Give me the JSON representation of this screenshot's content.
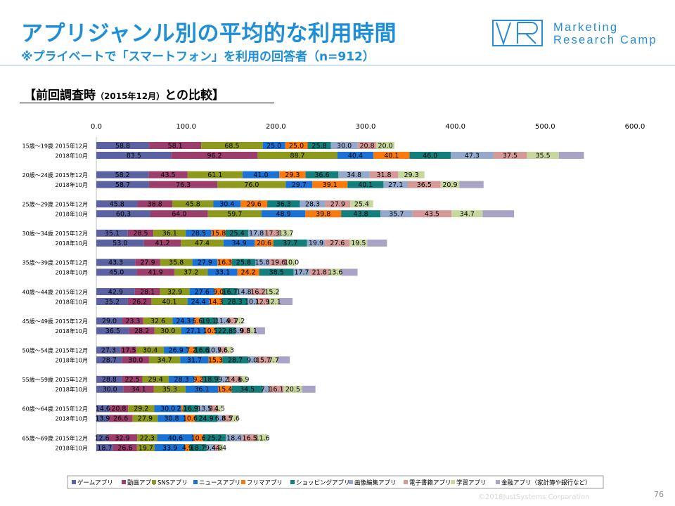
{
  "header": {
    "title": "アプリジャンル別の平均的な利用時間",
    "subtitle": "※プライベートで「スマートフォン」を利用の回答者（n=912）"
  },
  "logo": {
    "line1": "Marketing",
    "line2": "Research Camp",
    "color": "#2a8bd6"
  },
  "section": {
    "label_main": "【前回調査時",
    "label_small": "（2015年12月）",
    "label_end": "との比較】"
  },
  "footer": {
    "page_number": "76",
    "copyright": "©2018JustSystems Corporation"
  },
  "chart_data": {
    "type": "bar",
    "orientation": "horizontal",
    "stacked": true,
    "xlim": [
      0,
      600
    ],
    "xticks": [
      "0.0",
      "100.0",
      "200.0",
      "300.0",
      "400.0",
      "500.0",
      "600.0"
    ],
    "grid": false,
    "legend_position": "bottom",
    "groups": [
      {
        "age": "15歳～19歳",
        "rows": [
          {
            "period": "2015年12月",
            "values": [
              58.8,
              58.1,
              68.5,
              25.0,
              25.0,
              25.8,
              30.0,
              20.8,
              20.0,
              0
            ]
          },
          {
            "period": "2018年10月",
            "values": [
              83.5,
              96.2,
              88.7,
              40.4,
              40.1,
              46.0,
              47.3,
              37.5,
              35.5,
              28
            ]
          }
        ]
      },
      {
        "age": "20歳～24歳",
        "rows": [
          {
            "period": "2015年12月",
            "values": [
              58.2,
              43.5,
              61.1,
              41.0,
              29.3,
              36.6,
              34.8,
              31.8,
              29.3,
              0
            ]
          },
          {
            "period": "2018年10月",
            "values": [
              58.7,
              76.3,
              76.0,
              29.7,
              39.1,
              40.1,
              27.1,
              36.5,
              20.9,
              27
            ]
          }
        ]
      },
      {
        "age": "25歳～29歳",
        "rows": [
          {
            "period": "2015年12月",
            "values": [
              45.8,
              38.8,
              45.8,
              30.4,
              29.6,
              36.3,
              28.3,
              27.9,
              25.4,
              0
            ]
          },
          {
            "period": "2018年10月",
            "values": [
              60.3,
              64.0,
              59.7,
              48.9,
              39.8,
              43.8,
              35.7,
              43.5,
              34.7,
              35
            ]
          }
        ]
      },
      {
        "age": "30歳～34歳",
        "rows": [
          {
            "period": "2015年12月",
            "values": [
              35.1,
              28.5,
              36.1,
              28.5,
              15.8,
              25.4,
              17.8,
              17.3,
              13.7,
              0
            ]
          },
          {
            "period": "2018年10月",
            "values": [
              53.0,
              41.2,
              47.4,
              34.9,
              20.6,
              37.7,
              19.9,
              27.6,
              19.5,
              22
            ]
          }
        ]
      },
      {
        "age": "35歳～39歳",
        "rows": [
          {
            "period": "2015年12月",
            "values": [
              43.3,
              27.9,
              35.8,
              27.9,
              16.3,
              25.8,
              15.8,
              19.6,
              10.0,
              0
            ]
          },
          {
            "period": "2018年10月",
            "values": [
              45.0,
              41.9,
              37.2,
              33.1,
              24.2,
              38.5,
              17.7,
              21.8,
              13.6,
              18
            ]
          }
        ]
      },
      {
        "age": "40歳～44歳",
        "rows": [
          {
            "period": "2015年12月",
            "values": [
              42.9,
              28.1,
              32.9,
              27.6,
              9.0,
              16.7,
              14.8,
              16.2,
              15.2,
              0
            ]
          },
          {
            "period": "2018年10月",
            "values": [
              35.2,
              26.2,
              40.1,
              24.4,
              14.3,
              28.3,
              10.1,
              12.9,
              12.1,
              15
            ]
          }
        ]
      },
      {
        "age": "45歳～49歳",
        "rows": [
          {
            "period": "2015年12月",
            "values": [
              29.0,
              23.3,
              32.6,
              24.3,
              6.6,
              19.1,
              11.4,
              9.7,
              7.2,
              0
            ]
          },
          {
            "period": "2018年10月",
            "values": [
              36.5,
              28.2,
              30.0,
              27.1,
              10.5,
              22.8,
              5.9,
              9.8,
              5.1,
              12
            ]
          }
        ]
      },
      {
        "age": "50歳～54歳",
        "rows": [
          {
            "period": "2015年12月",
            "values": [
              27.3,
              17.5,
              30.4,
              26.9,
              7.2,
              16.6,
              10.9,
              7.6,
              6.3,
              0
            ]
          },
          {
            "period": "2018年10月",
            "values": [
              28.7,
              30.0,
              34.7,
              31.7,
              15.3,
              28.7,
              9.0,
              15.7,
              7.7,
              14
            ]
          }
        ]
      },
      {
        "age": "55歳～59歳",
        "rows": [
          {
            "period": "2015年12月",
            "values": [
              28.8,
              22.5,
              29.4,
              28.3,
              9.2,
              18.9,
              9.2,
              14.6,
              6.9,
              0
            ]
          },
          {
            "period": "2018年10月",
            "values": [
              30.0,
              34.1,
              35.3,
              36.1,
              15.4,
              34.5,
              7.1,
              16.1,
              20.5,
              15
            ]
          }
        ]
      },
      {
        "age": "60歳～64歳",
        "rows": [
          {
            "period": "2015年12月",
            "values": [
              14.6,
              20.8,
              29.2,
              30.0,
              2.1,
              16.9,
              13.5,
              8.1,
              4.5,
              0
            ]
          },
          {
            "period": "2018年10月",
            "values": [
              13.9,
              26.6,
              27.9,
              30.8,
              10.6,
              24.9,
              6.8,
              8.5,
              7.6,
              0
            ]
          }
        ]
      },
      {
        "age": "65歳～69歳",
        "rows": [
          {
            "period": "2015年12月",
            "values": [
              12.6,
              32.9,
              22.3,
              40.6,
              10.6,
              25.2,
              18.4,
              16.5,
              11.6,
              0
            ]
          },
          {
            "period": "2018年10月",
            "values": [
              18.7,
              26.6,
              19.7,
              33.9,
              4.9,
              18.7,
              9.4,
              4.9,
              4.4,
              0
            ]
          }
        ]
      }
    ],
    "series": [
      {
        "name": "ゲームアプリ",
        "color": "#5b62a2"
      },
      {
        "name": "動画アプリ",
        "color": "#9c3e6b"
      },
      {
        "name": "SNSアプリ",
        "color": "#8e9a1b"
      },
      {
        "name": "ニュースアプリ",
        "color": "#1a72d6"
      },
      {
        "name": "フリマアプリ",
        "color": "#fa7a0e"
      },
      {
        "name": "ショッピングアプリ",
        "color": "#127f7d"
      },
      {
        "name": "画像編集アプリ",
        "color": "#95a9cd"
      },
      {
        "name": "電子書籍アプリ",
        "color": "#d59a98"
      },
      {
        "name": "学習アプリ",
        "color": "#c7d79d"
      },
      {
        "name": "金融アプリ（家計簿や銀行など）",
        "color": "#a9a3c6"
      }
    ]
  }
}
